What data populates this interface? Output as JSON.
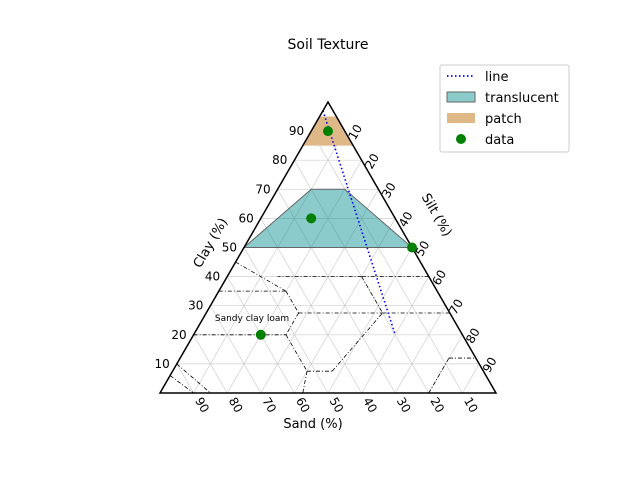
{
  "chart_data": {
    "type": "ternary",
    "title": "Soil Texture",
    "axes": {
      "sand": {
        "label": "Sand (%)",
        "ticks": [
          10,
          20,
          30,
          40,
          50,
          60,
          70,
          80,
          90
        ]
      },
      "silt": {
        "label": "Silt (%)",
        "ticks": [
          10,
          20,
          30,
          40,
          50,
          60,
          70,
          80,
          90
        ]
      },
      "clay": {
        "label": "Clay (%)",
        "ticks": [
          10,
          20,
          30,
          40,
          50,
          60,
          70,
          80,
          90
        ]
      }
    },
    "grid": true,
    "region_label": "Sandy clay loam",
    "legend": {
      "placement": "top-right",
      "items": [
        {
          "label": "line",
          "kind": "line",
          "color": "#0000ff"
        },
        {
          "label": "translucent",
          "kind": "patch",
          "color": "#008b8b"
        },
        {
          "label": "patch",
          "kind": "patch",
          "color": "#deb887"
        },
        {
          "label": "data",
          "kind": "marker",
          "color": "#008000"
        }
      ]
    },
    "series": [
      {
        "name": "line",
        "kind": "line",
        "style": "dotted",
        "color": "#0000ff",
        "points": [
          {
            "sand": 3,
            "silt": 0,
            "clay": 97
          },
          {
            "sand": 20,
            "silt": 60,
            "clay": 20
          }
        ]
      },
      {
        "name": "translucent",
        "kind": "polygon",
        "color": "#008b8b",
        "opacity": 0.45,
        "points": [
          {
            "sand": 20,
            "silt": 10,
            "clay": 70
          },
          {
            "sand": 10,
            "silt": 20,
            "clay": 70
          },
          {
            "sand": 0,
            "silt": 50,
            "clay": 50
          },
          {
            "sand": 50,
            "silt": 0,
            "clay": 50
          }
        ]
      },
      {
        "name": "patch",
        "kind": "polygon",
        "color": "#deb887",
        "opacity": 1,
        "points": [
          {
            "sand": 5,
            "silt": 5,
            "clay": 90
          },
          {
            "sand": 5,
            "silt": 5,
            "clay": 90
          },
          {
            "sand": 0,
            "silt": 10,
            "clay": 90
          },
          {
            "sand": 10,
            "silt": 0,
            "clay": 90
          },
          {
            "sand": 0,
            "silt": 20,
            "clay": 80
          },
          {
            "sand": 20,
            "silt": 0,
            "clay": 80
          }
        ]
      },
      {
        "name": "data",
        "kind": "scatter",
        "color": "#008000",
        "points": [
          {
            "sand": 5,
            "silt": 5,
            "clay": 90
          },
          {
            "sand": 25,
            "silt": 15,
            "clay": 60
          },
          {
            "sand": 0,
            "silt": 50,
            "clay": 50
          },
          {
            "sand": 60,
            "silt": 20,
            "clay": 20
          }
        ]
      }
    ],
    "texture_boundaries": [
      [
        {
          "sand": 55,
          "silt": 0,
          "clay": 45
        },
        {
          "sand": 45,
          "silt": 20,
          "clay": 35
        }
      ],
      [
        {
          "sand": 65,
          "silt": 0,
          "clay": 35
        },
        {
          "sand": 45,
          "silt": 20,
          "clay": 35
        }
      ],
      [
        {
          "sand": 45,
          "silt": 20,
          "clay": 35
        },
        {
          "sand": 45,
          "silt": 27.5,
          "clay": 27.5
        }
      ],
      [
        {
          "sand": 45,
          "silt": 27.5,
          "clay": 27.5
        },
        {
          "sand": 52.5,
          "silt": 27.5,
          "clay": 20
        }
      ],
      [
        {
          "sand": 80,
          "silt": 0,
          "clay": 20
        },
        {
          "sand": 52.5,
          "silt": 27.5,
          "clay": 20
        }
      ],
      [
        {
          "sand": 45,
          "silt": 27.5,
          "clay": 27.5
        },
        {
          "sand": 20,
          "silt": 52.5,
          "clay": 27.5
        }
      ],
      [
        {
          "sand": 20,
          "silt": 40,
          "clay": 40
        },
        {
          "sand": 20,
          "silt": 52.5,
          "clay": 27.5
        }
      ],
      [
        {
          "sand": 20,
          "silt": 52.5,
          "clay": 27.5
        },
        {
          "sand": 0,
          "silt": 72.5,
          "clay": 27.5
        }
      ],
      [
        {
          "sand": 0,
          "silt": 60,
          "clay": 40
        },
        {
          "sand": 20,
          "silt": 40,
          "clay": 40
        }
      ],
      [
        {
          "sand": 20,
          "silt": 40,
          "clay": 40
        },
        {
          "sand": 45,
          "silt": 15,
          "clay": 40
        }
      ],
      [
        {
          "sand": 20,
          "silt": 80,
          "clay": 0
        },
        {
          "sand": 8,
          "silt": 80,
          "clay": 12
        }
      ],
      [
        {
          "sand": 8,
          "silt": 80,
          "clay": 12
        },
        {
          "sand": 0,
          "silt": 88,
          "clay": 12
        }
      ],
      [
        {
          "sand": 52.5,
          "silt": 27.5,
          "clay": 20
        },
        {
          "sand": 52.5,
          "silt": 40,
          "clay": 7.5
        }
      ],
      [
        {
          "sand": 52.5,
          "silt": 40,
          "clay": 7.5
        },
        {
          "sand": 45,
          "silt": 47.5,
          "clay": 7.5
        }
      ],
      [
        {
          "sand": 45,
          "silt": 47.5,
          "clay": 7.5
        },
        {
          "sand": 20,
          "silt": 52.5,
          "clay": 27.5
        }
      ],
      [
        {
          "sand": 52.5,
          "silt": 40,
          "clay": 7.5
        },
        {
          "sand": 57.5,
          "silt": 42.5,
          "clay": 0
        }
      ],
      [
        {
          "sand": 80,
          "silt": 0,
          "clay": 20
        },
        {
          "sand": 90,
          "silt": 0,
          "clay": 10
        }
      ],
      [
        {
          "sand": 90,
          "silt": 0,
          "clay": 10
        },
        {
          "sand": 85,
          "silt": 15,
          "clay": 0
        }
      ],
      [
        {
          "sand": 94,
          "silt": 0,
          "clay": 6
        },
        {
          "sand": 90,
          "silt": 10,
          "clay": 0
        }
      ]
    ]
  }
}
